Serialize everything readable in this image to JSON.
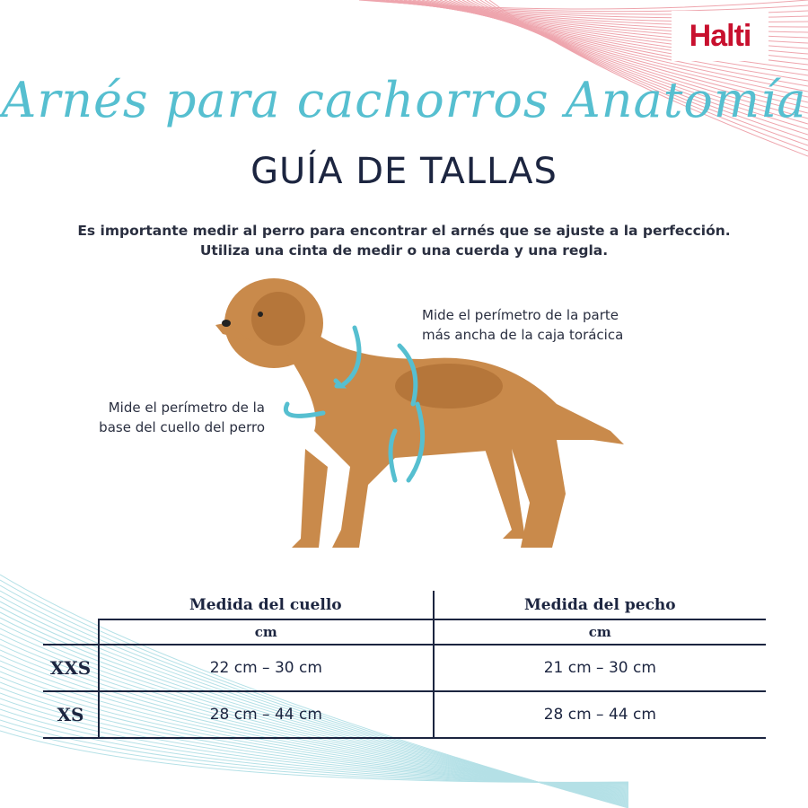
{
  "brand": {
    "logo": "Halti",
    "color": "#c8102e"
  },
  "header": {
    "script_title": "Arnés para cachorros Anatomía",
    "title": "GUÍA DE TALLAS"
  },
  "intro": {
    "line1": "Es importante medir al perro para encontrar el arnés que se ajuste a la perfección.",
    "line2": "Utiliza una cinta de medir o una cuerda y una regla."
  },
  "notes": {
    "chest": {
      "line1": "Mide el perímetro de la parte",
      "line2": "más ancha de la caja torácica"
    },
    "neck": {
      "line1": "Mide el perímetro de la",
      "line2": "base del cuello del perro"
    }
  },
  "colors": {
    "accent": "#56bfd0",
    "text": "#1c2540"
  },
  "table": {
    "headers": [
      "Medida del cuello",
      "Medida del pecho"
    ],
    "units": [
      "cm",
      "cm"
    ],
    "rows": [
      {
        "size": "XXS",
        "neck": "22 cm – 30 cm",
        "chest": "21 cm – 30 cm"
      },
      {
        "size": "XS",
        "neck": "28 cm – 44 cm",
        "chest": "28 cm – 44 cm"
      }
    ]
  }
}
